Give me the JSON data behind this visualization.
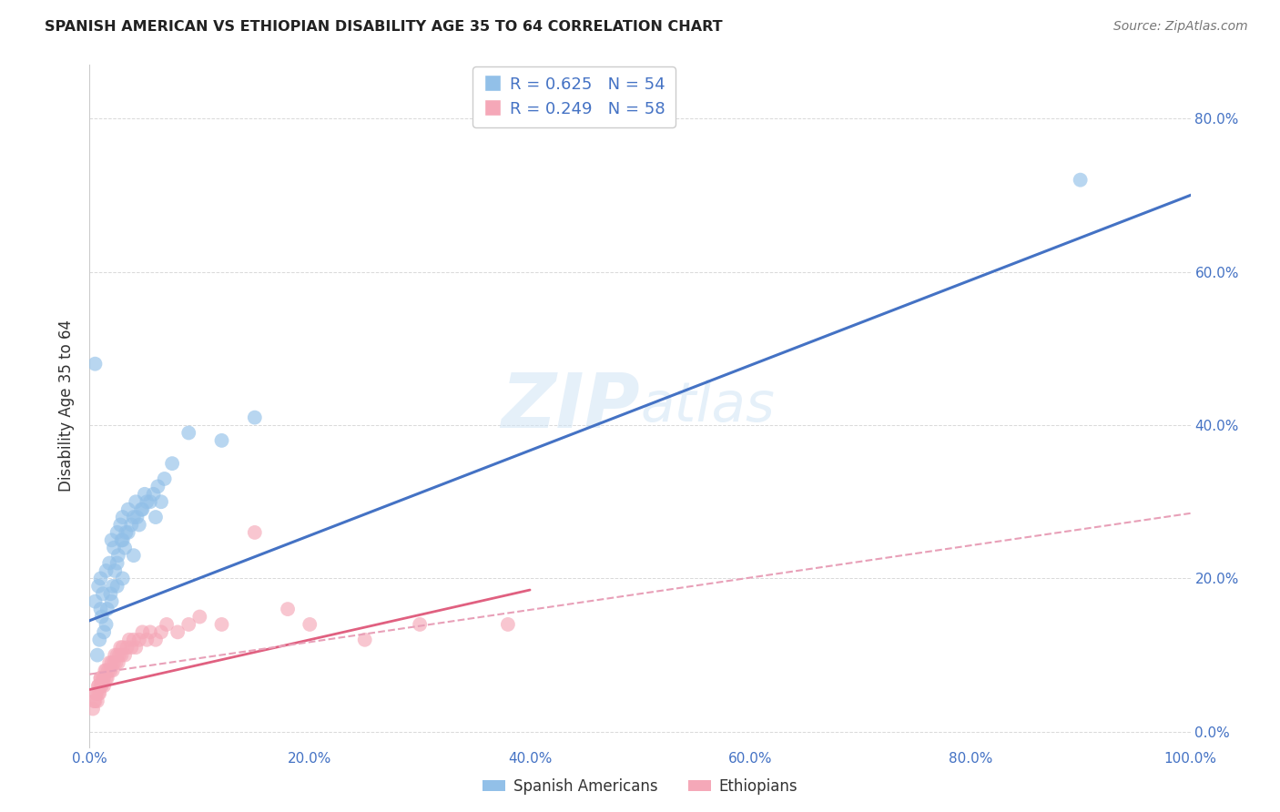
{
  "title": "SPANISH AMERICAN VS ETHIOPIAN DISABILITY AGE 35 TO 64 CORRELATION CHART",
  "source": "Source: ZipAtlas.com",
  "ylabel": "Disability Age 35 to 64",
  "xlim": [
    0.0,
    1.0
  ],
  "ylim": [
    -0.02,
    0.87
  ],
  "xticks": [
    0.0,
    0.2,
    0.4,
    0.6,
    0.8,
    1.0
  ],
  "xtick_labels": [
    "0.0%",
    "20.0%",
    "40.0%",
    "60.0%",
    "80.0%",
    "100.0%"
  ],
  "yticks": [
    0.0,
    0.2,
    0.4,
    0.6,
    0.8
  ],
  "ytick_labels": [
    "0.0%",
    "20.0%",
    "40.0%",
    "60.0%",
    "80.0%"
  ],
  "blue_color": "#92c0e8",
  "pink_color": "#f5a8b8",
  "blue_line_color": "#4472c4",
  "pink_line_color": "#e06080",
  "dashed_line_color": "#e8a0b8",
  "tick_color": "#4472c4",
  "legend_text_color": "#4472c4",
  "blue_scatter_x": [
    0.005,
    0.008,
    0.01,
    0.01,
    0.012,
    0.015,
    0.015,
    0.018,
    0.02,
    0.02,
    0.022,
    0.025,
    0.025,
    0.025,
    0.028,
    0.03,
    0.03,
    0.03,
    0.032,
    0.035,
    0.035,
    0.04,
    0.04,
    0.042,
    0.045,
    0.048,
    0.05,
    0.055,
    0.06,
    0.065,
    0.007,
    0.009,
    0.011,
    0.013,
    0.016,
    0.019,
    0.021,
    0.023,
    0.026,
    0.029,
    0.033,
    0.038,
    0.043,
    0.047,
    0.052,
    0.058,
    0.062,
    0.068,
    0.075,
    0.09,
    0.12,
    0.15,
    0.9,
    0.005
  ],
  "blue_scatter_y": [
    0.17,
    0.19,
    0.16,
    0.2,
    0.18,
    0.21,
    0.14,
    0.22,
    0.17,
    0.25,
    0.24,
    0.19,
    0.26,
    0.22,
    0.27,
    0.2,
    0.25,
    0.28,
    0.24,
    0.26,
    0.29,
    0.28,
    0.23,
    0.3,
    0.27,
    0.29,
    0.31,
    0.3,
    0.28,
    0.3,
    0.1,
    0.12,
    0.15,
    0.13,
    0.16,
    0.18,
    0.19,
    0.21,
    0.23,
    0.25,
    0.26,
    0.27,
    0.28,
    0.29,
    0.3,
    0.31,
    0.32,
    0.33,
    0.35,
    0.39,
    0.38,
    0.41,
    0.72,
    0.48
  ],
  "pink_scatter_x": [
    0.003,
    0.005,
    0.006,
    0.007,
    0.008,
    0.008,
    0.009,
    0.01,
    0.01,
    0.011,
    0.012,
    0.013,
    0.013,
    0.014,
    0.015,
    0.015,
    0.016,
    0.017,
    0.018,
    0.019,
    0.02,
    0.021,
    0.022,
    0.023,
    0.024,
    0.025,
    0.026,
    0.027,
    0.028,
    0.029,
    0.03,
    0.032,
    0.034,
    0.036,
    0.038,
    0.04,
    0.042,
    0.045,
    0.048,
    0.052,
    0.055,
    0.06,
    0.065,
    0.07,
    0.08,
    0.09,
    0.1,
    0.12,
    0.15,
    0.18,
    0.2,
    0.25,
    0.3,
    0.38,
    0.004,
    0.006,
    0.008,
    0.01
  ],
  "pink_scatter_y": [
    0.03,
    0.04,
    0.05,
    0.04,
    0.05,
    0.06,
    0.05,
    0.06,
    0.07,
    0.06,
    0.07,
    0.06,
    0.07,
    0.08,
    0.07,
    0.08,
    0.07,
    0.08,
    0.09,
    0.08,
    0.09,
    0.08,
    0.09,
    0.1,
    0.09,
    0.1,
    0.09,
    0.1,
    0.11,
    0.1,
    0.11,
    0.1,
    0.11,
    0.12,
    0.11,
    0.12,
    0.11,
    0.12,
    0.13,
    0.12,
    0.13,
    0.12,
    0.13,
    0.14,
    0.13,
    0.14,
    0.15,
    0.14,
    0.26,
    0.16,
    0.14,
    0.12,
    0.14,
    0.14,
    0.04,
    0.05,
    0.06,
    0.07
  ],
  "blue_line_x": [
    0.0,
    1.0
  ],
  "blue_line_y": [
    0.145,
    0.7
  ],
  "pink_line_x": [
    0.0,
    0.4
  ],
  "pink_line_y": [
    0.055,
    0.185
  ],
  "dashed_line_x": [
    0.0,
    1.0
  ],
  "dashed_line_y": [
    0.075,
    0.285
  ]
}
